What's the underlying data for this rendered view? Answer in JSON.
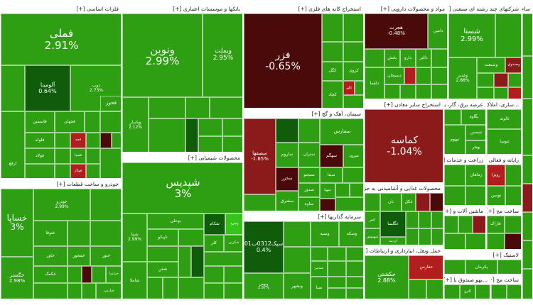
{
  "colors": {
    "green": "#2e9e12",
    "bright_green": "#35c51a",
    "dark_green": "#0f5c0a",
    "red": "#8b1a1a",
    "light_red": "#b01e1e",
    "dark_red": "#4a0a0a",
    "border": "#ffffff"
  },
  "sectors": [
    {
      "header": "فلزات اساسی [+]",
      "tiles": [
        {
          "name": "فملی",
          "pct": "2.91%",
          "color": "green"
        },
        {
          "name": "فولاد",
          "color": "green"
        },
        {
          "name": "فخوز",
          "color": "green"
        },
        {
          "name": "فسپا",
          "color": "green"
        },
        {
          "name": "ذوب",
          "pct": "2.73%",
          "color": "green"
        },
        {
          "name": "آلومینا",
          "pct": "0.64%",
          "color": "dark_green"
        },
        {
          "name": "فاسمین",
          "color": "green"
        },
        {
          "name": "فجهان",
          "color": "green"
        },
        {
          "name": "فلوله",
          "color": "green"
        },
        {
          "name": "فنورد",
          "color": "green"
        },
        {
          "name": "ارفع",
          "color": "green"
        },
        {
          "name": "فجام",
          "color": "green"
        },
        {
          "name": "فجه",
          "color": "light_red"
        },
        {
          "name": "فزرين",
          "color": "green"
        },
        {
          "name": "فسبا",
          "color": "green"
        },
        {
          "name": "فولاژ",
          "color": "light_red"
        },
        {
          "name": "هرمز",
          "color": "green"
        },
        {
          "name": "فروس",
          "color": "green"
        },
        {
          "name": "كروميت",
          "color": "green"
        }
      ]
    },
    {
      "header": "خودرو و ساخت قطعات [+]",
      "tiles": [
        {
          "name": "خساپا",
          "pct": "3%",
          "color": "green"
        },
        {
          "name": "خودرو",
          "pct": "2.99%",
          "color": "green"
        },
        {
          "name": "خگستر",
          "pct": "2.98%",
          "color": "green"
        },
        {
          "name": "ختوقا",
          "color": "green"
        },
        {
          "name": "خاور",
          "color": "green"
        },
        {
          "name": "خمحور",
          "color": "green"
        },
        {
          "name": "ختور",
          "color": "green"
        },
        {
          "name": "خكمک",
          "color": "green"
        },
        {
          "name": "خزامیا",
          "color": "green"
        },
        {
          "name": "خپارس",
          "color": "green"
        },
        {
          "name": "خفنر",
          "color": "green"
        }
      ]
    },
    {
      "header": "بانکها و موسسات اعتباری [+]",
      "tiles": [
        {
          "name": "ونوین",
          "pct": "2.99%",
          "color": "green"
        },
        {
          "name": "وبملت",
          "pct": "2.95%",
          "color": "green"
        },
        {
          "name": "وپاسار",
          "pct": "2.12%",
          "color": "green"
        },
        {
          "name": "وبصادر",
          "color": "green"
        },
        {
          "name": "وتجارت",
          "color": "green"
        }
      ]
    },
    {
      "header": "محصولات شیمیایی [+]",
      "tiles": [
        {
          "name": "شپدیس",
          "pct": "3%",
          "color": "green"
        },
        {
          "name": "شپنا",
          "pct": "2.99%",
          "color": "green"
        },
        {
          "name": "بوعلی",
          "color": "green"
        },
        {
          "name": "شکام",
          "color": "dark_green"
        },
        {
          "name": "ونيرو",
          "color": "bright_green"
        },
        {
          "name": "تاپیکو",
          "color": "green"
        },
        {
          "name": "کلر",
          "color": "green"
        },
        {
          "name": "شکربن",
          "color": "green"
        },
        {
          "name": "شاملا",
          "color": "green"
        },
        {
          "name": "شفن",
          "color": "green"
        }
      ]
    },
    {
      "header": "استخراج کانه های فلزی [+]",
      "tiles": [
        {
          "name": "فزر",
          "pct": "-0.65%",
          "color": "dark_red"
        },
        {
          "name": "کگل",
          "color": "green"
        },
        {
          "name": "کروی",
          "color": "green"
        },
        {
          "name": "کچاد",
          "color": "green"
        },
        {
          "name": "کگهر",
          "color": "light_red"
        },
        {
          "name": "کرماشا",
          "color": "green"
        },
        {
          "name": "کبافق",
          "color": "green"
        },
        {
          "name": "کمنگنز",
          "color": "green"
        },
        {
          "name": "کجام",
          "color": "green"
        },
        {
          "name": "کمیت",
          "color": "green"
        },
        {
          "name": "کطبس",
          "color": "green"
        }
      ]
    },
    {
      "header": "سیمان، آهک و گچ [+]",
      "tiles": [
        {
          "name": "سفارس",
          "color": "green"
        },
        {
          "name": "سصفها",
          "pct": "-1.65%",
          "color": "red"
        },
        {
          "name": "سهگم",
          "color": "dark_red"
        },
        {
          "name": "ساروم",
          "color": "green"
        },
        {
          "name": "ستران",
          "color": "green"
        },
        {
          "name": "سرود",
          "color": "green"
        },
        {
          "name": "سخزر",
          "color": "dark_red"
        },
        {
          "name": "سیتا",
          "color": "green"
        },
        {
          "name": "سبجنو",
          "color": "green"
        },
        {
          "name": "سهپا",
          "color": "green"
        },
        {
          "name": "سشرق",
          "color": "green"
        },
        {
          "name": "سدور",
          "color": "green"
        },
        {
          "name": "ساوه",
          "color": "green"
        },
        {
          "name": "سکرما",
          "color": "green"
        }
      ]
    },
    {
      "header": "سرمایه گذاریها [+]",
      "tiles": [
        {
          "name": "سپک0312ب01",
          "pct": "0.4%",
          "color": "dark_green"
        },
        {
          "name": "وسپه",
          "color": "green"
        },
        {
          "name": "وبشهر",
          "color": "green"
        },
        {
          "name": "ونیکی",
          "color": "green"
        },
        {
          "name": "وصنا",
          "color": "green"
        },
        {
          "name": "سدبیر",
          "color": "green"
        },
        {
          "name": "وبهمن",
          "pct": "2.97%",
          "color": "green"
        },
        {
          "name": "وخارزم",
          "color": "green"
        },
        {
          "name": "صبا",
          "color": "green"
        },
        {
          "name": "وسکه",
          "color": "green"
        }
      ]
    },
    {
      "header": "مواد و محصولات دارویی [+]",
      "tiles": [
        {
          "name": "هجرت",
          "pct": "-0.48%",
          "color": "dark_red"
        },
        {
          "name": "دامین",
          "color": "green"
        },
        {
          "name": "بخش",
          "color": "green"
        },
        {
          "name": "دارو",
          "color": "green"
        },
        {
          "name": "دالبر",
          "color": "green"
        },
        {
          "name": "دسبحان",
          "color": "green"
        },
        {
          "name": "دلقما",
          "color": "green"
        },
        {
          "name": "دفارا",
          "color": "green"
        },
        {
          "name": "دکوثر",
          "color": "green"
        },
        {
          "name": "دتماد",
          "color": "green"
        },
        {
          "name": "دسینا",
          "color": "green"
        }
      ]
    },
    {
      "header": "استخراج سایر معادن [+]",
      "tiles": [
        {
          "name": "کماسه",
          "pct": "-1.04%",
          "color": "red"
        }
      ]
    },
    {
      "header": "محصولات غذایی و آشامیدنی به جز [+]",
      "tiles": [
        {
          "name": "غگلسا",
          "color": "dark_green"
        },
        {
          "name": "غکل",
          "color": "green"
        },
        {
          "name": "نان",
          "color": "green"
        },
        {
          "name": "غبر",
          "color": "green"
        },
        {
          "name": "اردینه",
          "color": "green"
        },
        {
          "name": "غیتوتا",
          "color": "green"
        },
        {
          "name": "غبهنوش",
          "color": "green"
        }
      ]
    },
    {
      "header": "حمل ونقل، انبارداری و ارتباطات [+]",
      "tiles": [
        {
          "name": "حکشتی",
          "pct": "2.88%",
          "color": "green"
        },
        {
          "name": "حفارس",
          "color": "light_red"
        },
        {
          "name": "حتاید",
          "color": "green"
        },
        {
          "name": "حسینا",
          "color": "green"
        },
        {
          "name": "حآسا",
          "color": "green"
        }
      ]
    },
    {
      "header": "شرکتهای چند رشته ای صنعتی [+]",
      "tiles": [
        {
          "name": "شستا",
          "pct": "2.99%",
          "color": "green"
        },
        {
          "name": "وغدیر",
          "pct": "2.88%",
          "color": "green"
        },
        {
          "name": "وصندوق",
          "color": "light_red"
        },
        {
          "name": "وصنعت",
          "color": "green"
        }
      ]
    },
    {
      "header": "...سازی، املاک [+]",
      "tiles": [
        {
          "name": "ثالوند",
          "color": "green"
        },
        {
          "name": "ثنوسا",
          "color": "green"
        },
        {
          "name": "ثامان",
          "color": "green"
        }
      ]
    },
    {
      "header": "عرضه برق، گاز، بخاروآب [+]",
      "tiles": [
        {
          "name": "بگاوه",
          "color": "green"
        },
        {
          "name": "شمس",
          "color": "green"
        },
        {
          "name": "بهجر",
          "color": "green"
        }
      ]
    },
    {
      "header": "زراعت و خدمات [+]",
      "tiles": [
        {
          "name": "زماهان",
          "color": "green"
        },
        {
          "name": "زکوثر",
          "color": "green"
        }
      ]
    },
    {
      "header": "رایانه و فعالی [+]",
      "tiles": [
        {
          "name": "رتاپ",
          "color": "green"
        }
      ]
    },
    {
      "header": "...",
      "tiles": [
        {
          "name": "تبهوم",
          "color": "green"
        },
        {
          "name": "پخش",
          "color": "green"
        }
      ]
    },
    {
      "header": "ماشین آلات و [+]",
      "tiles": [
        {
          "name": "رتوسه",
          "color": "green"
        },
        {
          "name": "توسن",
          "color": "green"
        },
        {
          "name": "رویزا",
          "color": "light_red"
        }
      ]
    },
    {
      "header": "ساخت مح [+]",
      "tiles": [
        {
          "name": "فاراک",
          "color": "green"
        }
      ]
    },
    {
      "header": "لاستیک [+]",
      "tiles": [
        {
          "name": "پکرمان",
          "color": "green"
        }
      ]
    },
    {
      "header": "...بهو صندوق با [+]",
      "tiles": [
        {
          "name": "الترو",
          "color": "green"
        }
      ]
    },
    {
      "header": "ساخت مح [+]",
      "tiles": []
    },
    {
      "header": "ساخت [+]",
      "tiles": [
        {
          "name": "افق",
          "color": "green"
        },
        {
          "name": "ولساپا",
          "color": "green"
        }
      ]
    }
  ]
}
